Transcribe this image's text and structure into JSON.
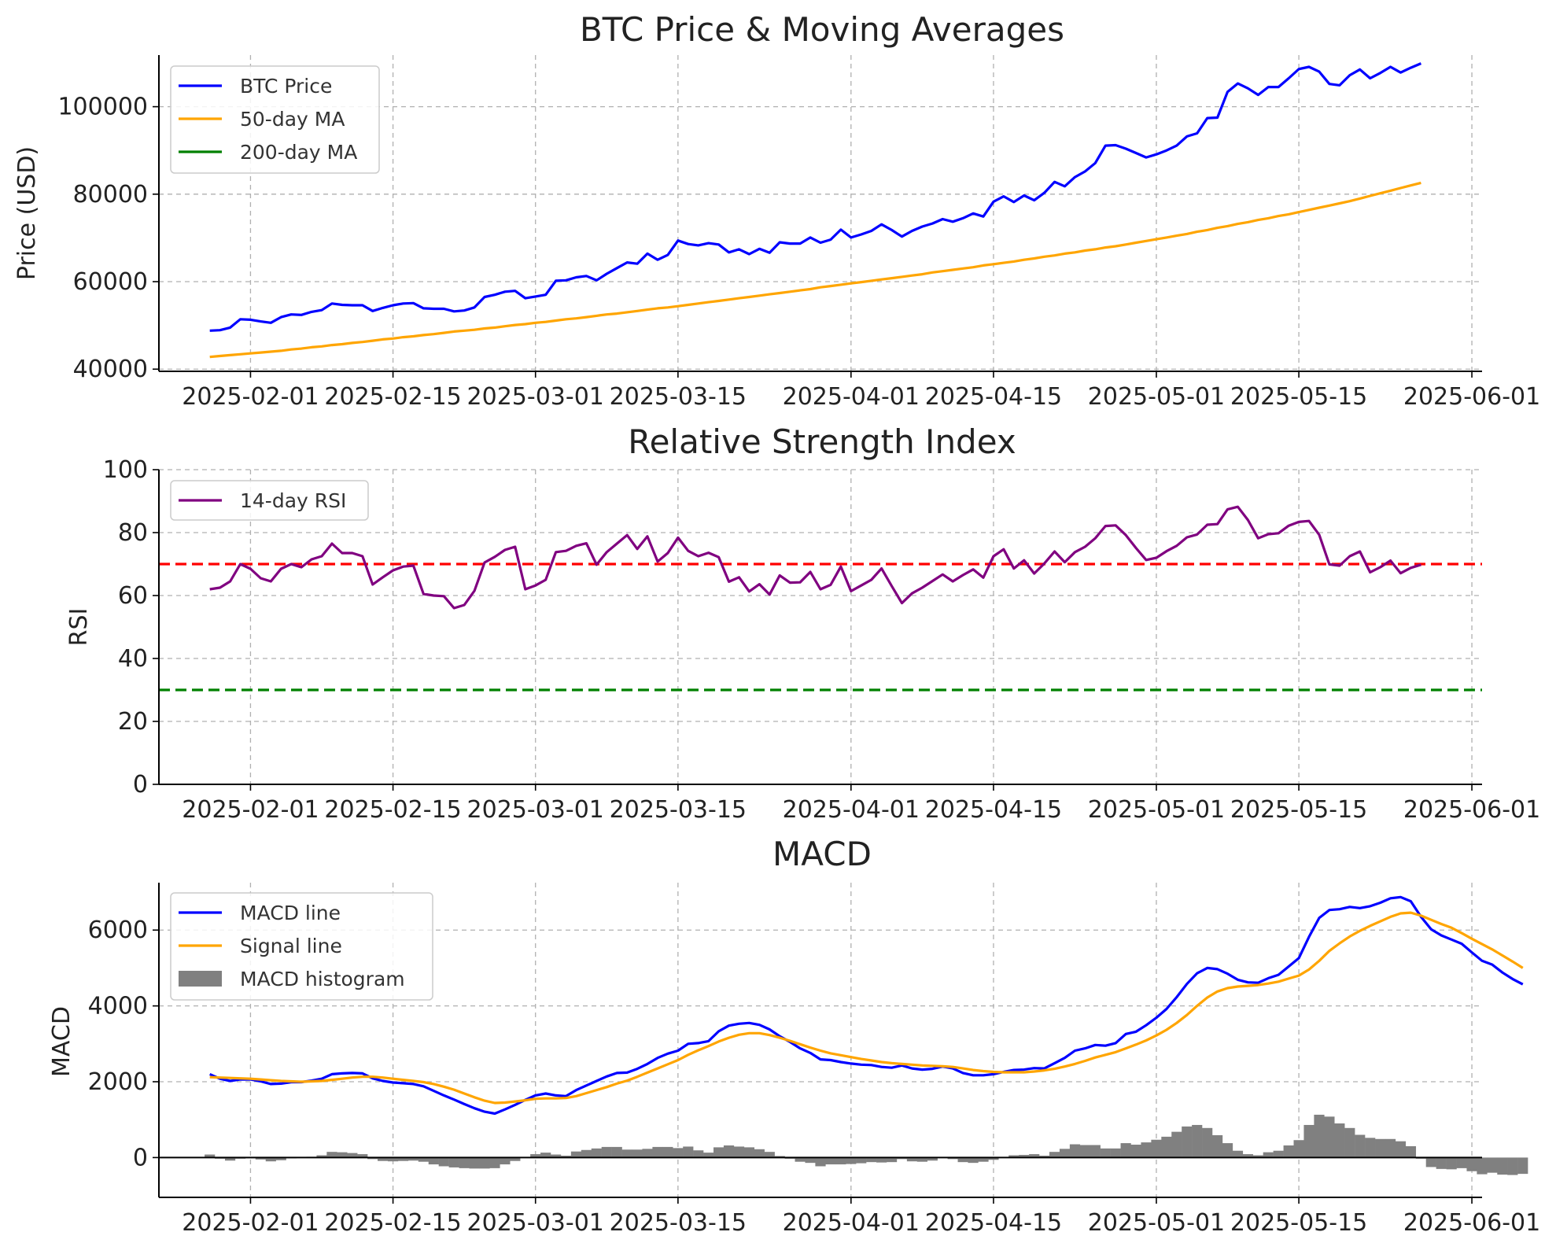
{
  "chart_data": [
    {
      "type": "line",
      "title": "BTC Price & Moving Averages",
      "xlabel": "",
      "ylabel": "Price (USD)",
      "x_start": "2025-01-28",
      "x_step_days": 1,
      "xlim": [
        "2025-01-23",
        "2025-06-02"
      ],
      "ylim": [
        39500,
        111800
      ],
      "yticks": [
        40000,
        60000,
        80000,
        100000
      ],
      "xticks": [
        "2025-02-01",
        "2025-02-15",
        "2025-03-01",
        "2025-03-15",
        "2025-04-01",
        "2025-04-15",
        "2025-05-01",
        "2025-05-15",
        "2025-06-01"
      ],
      "grid": true,
      "legend": "top-left",
      "series": [
        {
          "name": "BTC Price",
          "color": "#0000ff",
          "values": [
            48800,
            48900,
            49500,
            51400,
            51300,
            50900,
            50600,
            51900,
            52500,
            52400,
            53100,
            53500,
            55000,
            54700,
            54600,
            54600,
            53300,
            54000,
            54600,
            55000,
            55100,
            53900,
            53800,
            53800,
            53200,
            53400,
            54100,
            56500,
            57000,
            57700,
            57900,
            56200,
            56600,
            57000,
            60200,
            60300,
            61000,
            61300,
            60300,
            61800,
            63100,
            64400,
            64100,
            66400,
            65000,
            66100,
            69400,
            68600,
            68300,
            68800,
            68500,
            66700,
            67400,
            66300,
            67500,
            66600,
            69000,
            68700,
            68700,
            70100,
            68900,
            69600,
            71900,
            70100,
            70800,
            71600,
            73100,
            71800,
            70300,
            71600,
            72600,
            73300,
            74300,
            73700,
            74500,
            75600,
            74900,
            78300,
            79500,
            78200,
            79700,
            78600,
            80300,
            82800,
            81800,
            83900,
            85200,
            87100,
            91100,
            91200,
            90400,
            89400,
            88400,
            89100,
            90000,
            91100,
            93200,
            93900,
            97400,
            97500,
            103400,
            105300,
            104200,
            102700,
            104500,
            104500,
            106500,
            108600,
            109100,
            108000,
            105200,
            104900,
            107200,
            108500,
            106500,
            107700,
            109100,
            107800,
            108900,
            109900
          ]
        },
        {
          "name": "50-day MA",
          "color": "#ffa500",
          "values": [
            42800,
            43000,
            43200,
            43400,
            43600,
            43800,
            44000,
            44200,
            44500,
            44700,
            45000,
            45200,
            45500,
            45700,
            46000,
            46200,
            46500,
            46800,
            47000,
            47300,
            47500,
            47800,
            48000,
            48300,
            48600,
            48800,
            49000,
            49300,
            49500,
            49800,
            50100,
            50300,
            50600,
            50800,
            51100,
            51400,
            51600,
            51900,
            52200,
            52500,
            52700,
            53000,
            53300,
            53600,
            53900,
            54100,
            54400,
            54700,
            55000,
            55300,
            55600,
            55900,
            56200,
            56500,
            56800,
            57100,
            57400,
            57700,
            58000,
            58300,
            58700,
            59000,
            59300,
            59600,
            59900,
            60200,
            60500,
            60800,
            61100,
            61400,
            61700,
            62100,
            62400,
            62700,
            63000,
            63300,
            63700,
            64000,
            64300,
            64600,
            65000,
            65300,
            65700,
            66000,
            66400,
            66700,
            67100,
            67400,
            67800,
            68100,
            68500,
            68900,
            69300,
            69700,
            70100,
            70500,
            70900,
            71400,
            71800,
            72300,
            72700,
            73200,
            73600,
            74100,
            74500,
            75000,
            75400,
            75900,
            76400,
            76900,
            77400,
            77900,
            78400,
            79000,
            79600,
            80200,
            80800,
            81400,
            82000,
            82600
          ]
        }
      ]
    },
    {
      "type": "line",
      "title": "Relative Strength Index",
      "xlabel": "",
      "ylabel": "RSI",
      "x_start": "2025-01-28",
      "x_step_days": 1,
      "xlim": [
        "2025-01-23",
        "2025-06-02"
      ],
      "ylim": [
        0,
        100
      ],
      "yticks": [
        0,
        20,
        40,
        60,
        80,
        100
      ],
      "xticks": [
        "2025-02-01",
        "2025-02-15",
        "2025-03-01",
        "2025-03-15",
        "2025-04-01",
        "2025-04-15",
        "2025-05-01",
        "2025-05-15",
        "2025-06-01"
      ],
      "grid": true,
      "legend": "top-left",
      "hlines": [
        {
          "value": 70,
          "color": "#ff0000",
          "style": "dashed"
        },
        {
          "value": 30,
          "color": "#008000",
          "style": "dashed"
        }
      ],
      "series": [
        {
          "name": "14-day RSI",
          "color": "#800080",
          "values": [
            62,
            62.5,
            64.5,
            70,
            68.5,
            65.5,
            64.5,
            68.5,
            70,
            69,
            71.5,
            72.5,
            76.5,
            73.5,
            73.5,
            72.5,
            63.5,
            65.8,
            68,
            69.2,
            69.5,
            60.5,
            60,
            59.8,
            56,
            57,
            61.5,
            70.5,
            72.3,
            74.5,
            75.5,
            62,
            63.2,
            65,
            73.8,
            74.2,
            75.8,
            76.6,
            69.8,
            73.8,
            76.5,
            79.2,
            74.8,
            78.8,
            70.8,
            73.5,
            78.4,
            74.2,
            72.5,
            73.6,
            72.2,
            64.4,
            65.8,
            61.3,
            63.6,
            60.3,
            66.4,
            64.1,
            64.2,
            67.5,
            62,
            63.4,
            69.2,
            61.4,
            63.2,
            65,
            68.6,
            63,
            57.6,
            60.7,
            62.5,
            64.6,
            66.7,
            64.5,
            66.5,
            68.3,
            65.7,
            72.5,
            74.7,
            68.6,
            71.2,
            67,
            70.2,
            74,
            70.6,
            73.8,
            75.5,
            78.2,
            82.1,
            82.3,
            79.2,
            75.1,
            71.3,
            72,
            74.1,
            75.8,
            78.5,
            79.4,
            82.5,
            82.7,
            87.4,
            88.2,
            84,
            78.2,
            79.5,
            79.8,
            82.2,
            83.4,
            83.7,
            79.3,
            69.9,
            69.5,
            72.5,
            74,
            67.4,
            69,
            71.1,
            67.1,
            68.8,
            69.8
          ]
        }
      ]
    },
    {
      "type": "line",
      "title": "MACD",
      "xlabel": "",
      "ylabel": "MACD",
      "x_start": "2025-01-28",
      "x_step_days": 1,
      "xlim": [
        "2025-01-23",
        "2025-06-02"
      ],
      "ylim": [
        -1050,
        7250
      ],
      "yticks": [
        0,
        2000,
        4000,
        6000
      ],
      "xticks": [
        "2025-02-01",
        "2025-02-15",
        "2025-03-01",
        "2025-03-15",
        "2025-04-01",
        "2025-04-15",
        "2025-05-01",
        "2025-05-15",
        "2025-06-01"
      ],
      "grid": true,
      "legend": "top-left",
      "series": [
        {
          "name": "MACD line",
          "color": "#0000ff",
          "values": [
            2200,
            2080,
            2020,
            2060,
            2060,
            2010,
            1940,
            1950,
            1990,
            1990,
            2030,
            2080,
            2200,
            2220,
            2230,
            2220,
            2090,
            2020,
            1980,
            1960,
            1940,
            1880,
            1760,
            1640,
            1530,
            1410,
            1300,
            1210,
            1160,
            1270,
            1390,
            1520,
            1640,
            1690,
            1640,
            1620,
            1780,
            1900,
            2020,
            2140,
            2230,
            2240,
            2340,
            2470,
            2630,
            2740,
            2820,
            3000,
            3020,
            3070,
            3330,
            3480,
            3530,
            3550,
            3500,
            3380,
            3200,
            3050,
            2880,
            2760,
            2590,
            2570,
            2520,
            2480,
            2450,
            2440,
            2390,
            2370,
            2430,
            2350,
            2320,
            2340,
            2400,
            2350,
            2230,
            2170,
            2170,
            2200,
            2260,
            2310,
            2320,
            2360,
            2350,
            2490,
            2630,
            2820,
            2880,
            2970,
            2950,
            3020,
            3260,
            3320,
            3490,
            3690,
            3920,
            4230,
            4580,
            4860,
            5000,
            4970,
            4850,
            4690,
            4620,
            4610,
            4730,
            4820,
            5040,
            5260,
            5820,
            6320,
            6530,
            6550,
            6610,
            6580,
            6630,
            6720,
            6840,
            6870,
            6760,
            6350,
            6020,
            5860,
            5750,
            5640,
            5410,
            5190,
            5090,
            4880,
            4710,
            4570
          ]
        },
        {
          "name": "Signal line",
          "color": "#ffa500",
          "values": [
            2120,
            2110,
            2100,
            2090,
            2080,
            2060,
            2040,
            2020,
            2010,
            2000,
            2010,
            2020,
            2050,
            2080,
            2110,
            2130,
            2130,
            2110,
            2080,
            2050,
            2020,
            1990,
            1940,
            1870,
            1790,
            1690,
            1590,
            1500,
            1440,
            1450,
            1480,
            1510,
            1550,
            1560,
            1560,
            1570,
            1620,
            1700,
            1780,
            1860,
            1950,
            2030,
            2130,
            2240,
            2350,
            2460,
            2570,
            2710,
            2830,
            2940,
            3060,
            3160,
            3240,
            3280,
            3280,
            3230,
            3160,
            3080,
            2990,
            2900,
            2820,
            2750,
            2700,
            2650,
            2600,
            2560,
            2520,
            2490,
            2470,
            2450,
            2430,
            2420,
            2410,
            2390,
            2350,
            2310,
            2280,
            2260,
            2250,
            2250,
            2250,
            2270,
            2300,
            2340,
            2400,
            2470,
            2550,
            2640,
            2710,
            2780,
            2880,
            2980,
            3090,
            3220,
            3370,
            3550,
            3760,
            4000,
            4220,
            4380,
            4470,
            4510,
            4530,
            4550,
            4590,
            4640,
            4720,
            4800,
            4960,
            5190,
            5450,
            5650,
            5830,
            5980,
            6110,
            6230,
            6350,
            6440,
            6460,
            6380,
            6270,
            6160,
            6060,
            5920,
            5770,
            5630,
            5490,
            5330,
            5170,
            5000
          ]
        },
        {
          "name": "MACD histogram",
          "color": "#808080",
          "kind": "bar",
          "values": [
            80,
            -30,
            -80,
            -30,
            -20,
            -50,
            -100,
            -70,
            -20,
            -10,
            20,
            60,
            150,
            140,
            120,
            90,
            -40,
            -90,
            -100,
            -90,
            -80,
            -110,
            -180,
            -230,
            -260,
            -280,
            -290,
            -290,
            -280,
            -180,
            -90,
            10,
            90,
            130,
            80,
            50,
            160,
            200,
            240,
            280,
            280,
            210,
            210,
            230,
            280,
            280,
            250,
            290,
            190,
            130,
            270,
            320,
            290,
            270,
            220,
            150,
            40,
            -30,
            -110,
            -140,
            -230,
            -180,
            -180,
            -170,
            -150,
            -120,
            -130,
            -120,
            -40,
            -100,
            -110,
            -80,
            -10,
            -40,
            -120,
            -140,
            -110,
            -60,
            10,
            60,
            70,
            90,
            50,
            150,
            230,
            350,
            330,
            330,
            240,
            240,
            380,
            340,
            400,
            470,
            550,
            680,
            820,
            860,
            780,
            590,
            380,
            180,
            90,
            60,
            140,
            180,
            320,
            460,
            860,
            1130,
            1080,
            900,
            780,
            600,
            520,
            490,
            490,
            430,
            300,
            -30,
            -250,
            -300,
            -310,
            -280,
            -360,
            -440,
            -400,
            -450,
            -460,
            -430
          ]
        }
      ]
    }
  ]
}
